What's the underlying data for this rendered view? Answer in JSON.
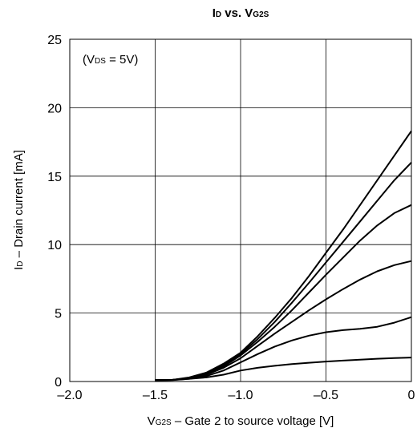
{
  "chart_data": {
    "type": "line",
    "title": {
      "main1": "I",
      "sub1": "D",
      "mid": " vs. V",
      "sub2": "G2S"
    },
    "xlabel": {
      "main1": "V",
      "sub1": "G2S",
      "rest": " – Gate 2 to source voltage [V]"
    },
    "ylabel": {
      "main1": "I",
      "sub1": "D",
      "rest": " – Drain current [mA]"
    },
    "annotation": {
      "open": "(V",
      "sub": "DS",
      "rest": " = 5V)"
    },
    "xlim": [
      -2.0,
      0
    ],
    "ylim": [
      0,
      25
    ],
    "xticks": [
      -2.0,
      -1.5,
      -1.0,
      -0.5,
      0
    ],
    "xtick_labels": [
      "–2.0",
      "–1.5",
      "–1.0",
      "–0.5",
      "0"
    ],
    "yticks": [
      0,
      5,
      10,
      15,
      20,
      25
    ],
    "ytick_labels": [
      "0",
      "5",
      "10",
      "15",
      "20",
      "25"
    ],
    "grid": true,
    "series": [
      {
        "x": [
          -1.5,
          -1.4,
          -1.3,
          -1.2,
          -1.1,
          -1.0,
          -0.9,
          -0.8,
          -0.7,
          -0.6,
          -0.5,
          -0.4,
          -0.3,
          -0.2,
          -0.1,
          0.0
        ],
        "y": [
          0.1,
          0.1,
          0.2,
          0.3,
          0.5,
          0.8,
          1.0,
          1.15,
          1.27,
          1.37,
          1.46,
          1.53,
          1.6,
          1.66,
          1.71,
          1.75
        ]
      },
      {
        "x": [
          -1.5,
          -1.4,
          -1.3,
          -1.2,
          -1.1,
          -1.0,
          -0.9,
          -0.8,
          -0.7,
          -0.6,
          -0.5,
          -0.4,
          -0.3,
          -0.2,
          -0.1,
          0.0
        ],
        "y": [
          0.1,
          0.12,
          0.2,
          0.4,
          0.8,
          1.4,
          2.0,
          2.55,
          3.0,
          3.35,
          3.6,
          3.75,
          3.85,
          4.0,
          4.3,
          4.7
        ]
      },
      {
        "x": [
          -1.5,
          -1.4,
          -1.3,
          -1.2,
          -1.1,
          -1.0,
          -0.9,
          -0.8,
          -0.7,
          -0.6,
          -0.5,
          -0.4,
          -0.3,
          -0.2,
          -0.1,
          0.0
        ],
        "y": [
          0.1,
          0.12,
          0.25,
          0.5,
          1.0,
          1.7,
          2.6,
          3.5,
          4.35,
          5.2,
          6.0,
          6.75,
          7.45,
          8.05,
          8.5,
          8.8
        ]
      },
      {
        "x": [
          -1.5,
          -1.4,
          -1.3,
          -1.2,
          -1.1,
          -1.0,
          -0.9,
          -0.8,
          -0.7,
          -0.6,
          -0.5,
          -0.4,
          -0.3,
          -0.2,
          -0.1,
          0.0
        ],
        "y": [
          0.1,
          0.12,
          0.25,
          0.55,
          1.1,
          1.9,
          2.9,
          4.0,
          5.2,
          6.5,
          7.8,
          9.05,
          10.3,
          11.4,
          12.3,
          12.9
        ]
      },
      {
        "x": [
          -1.5,
          -1.4,
          -1.3,
          -1.2,
          -1.1,
          -1.0,
          -0.9,
          -0.8,
          -0.7,
          -0.6,
          -0.5,
          -0.4,
          -0.3,
          -0.2,
          -0.1,
          0.0
        ],
        "y": [
          0.1,
          0.12,
          0.25,
          0.6,
          1.2,
          2.0,
          3.1,
          4.35,
          5.75,
          7.2,
          8.7,
          10.2,
          11.7,
          13.2,
          14.7,
          16.0
        ]
      },
      {
        "x": [
          -1.5,
          -1.4,
          -1.3,
          -1.2,
          -1.1,
          -1.0,
          -0.9,
          -0.8,
          -0.7,
          -0.6,
          -0.5,
          -0.4,
          -0.3,
          -0.2,
          -0.1,
          0.0
        ],
        "y": [
          0.1,
          0.12,
          0.3,
          0.65,
          1.3,
          2.1,
          3.3,
          4.65,
          6.1,
          7.7,
          9.4,
          11.1,
          12.9,
          14.7,
          16.5,
          18.3
        ]
      }
    ]
  }
}
